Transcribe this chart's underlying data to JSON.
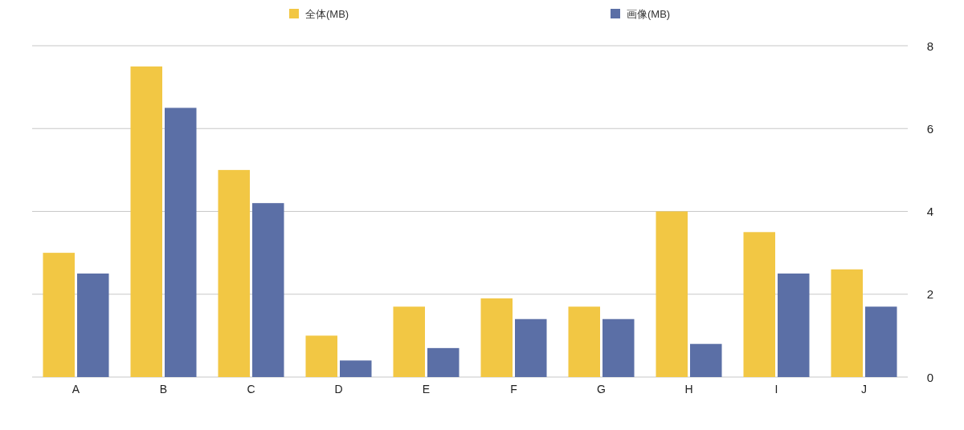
{
  "chart_data": {
    "type": "bar",
    "categories": [
      "A",
      "B",
      "C",
      "D",
      "E",
      "F",
      "G",
      "H",
      "I",
      "J"
    ],
    "series": [
      {
        "name": "全体(MB)",
        "color": "#f2c744",
        "values": [
          3.0,
          7.5,
          5.0,
          1.0,
          1.7,
          1.9,
          1.7,
          4.0,
          3.5,
          2.6
        ]
      },
      {
        "name": "画像(MB)",
        "color": "#5b6fa6",
        "values": [
          2.5,
          6.5,
          4.2,
          0.4,
          0.7,
          1.4,
          1.4,
          0.8,
          2.5,
          1.7
        ]
      }
    ],
    "ylim": [
      0,
      8
    ],
    "yticks": [
      0,
      2,
      4,
      6,
      8
    ],
    "grid": "y",
    "legend": "top"
  }
}
